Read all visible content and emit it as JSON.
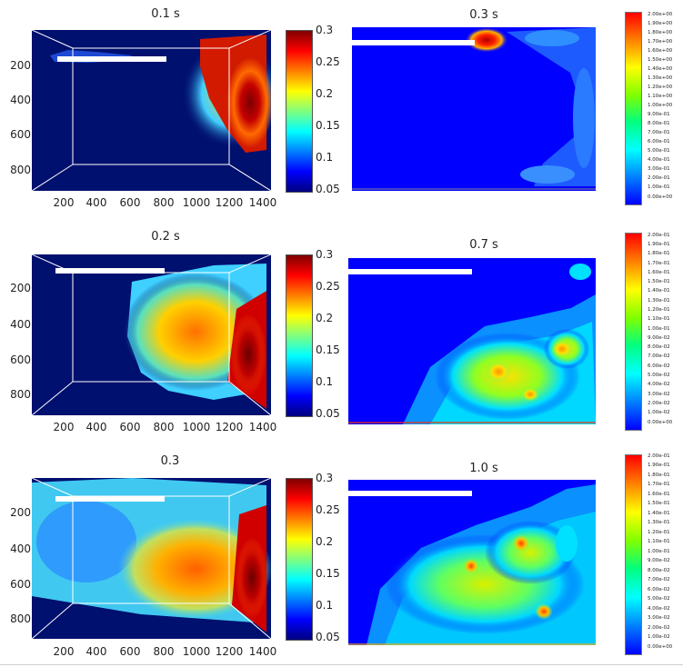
{
  "panels": [
    {
      "id": "exp1",
      "title": "0.1 s"
    },
    {
      "id": "exp2",
      "title": "0.2 s"
    },
    {
      "id": "exp3",
      "title": "0.3"
    },
    {
      "id": "sim1",
      "title": "0.3 s"
    },
    {
      "id": "sim2",
      "title": "0.7 s"
    },
    {
      "id": "sim3",
      "title": "1.0 s"
    }
  ],
  "chart_data": [
    {
      "type": "heatmap",
      "title": "0.1 s",
      "x_ticks": [
        "200",
        "400",
        "600",
        "800",
        "1000",
        "1200",
        "1400"
      ],
      "y_ticks": [
        "200",
        "400",
        "600",
        "800"
      ],
      "colorbar_ticks": [
        "0.3",
        "0.25",
        "0.2",
        "0.15",
        "0.1",
        "0.05"
      ],
      "colorbar_range": [
        0.05,
        0.3
      ],
      "colormap": "jet",
      "blobs": [
        {
          "x": 1300,
          "y": 350,
          "value": 0.29
        },
        {
          "x": 1150,
          "y": 300,
          "value": 0.2
        },
        {
          "x": 1050,
          "y": 150,
          "value": 0.15
        }
      ]
    },
    {
      "type": "heatmap",
      "title": "0.2 s",
      "x_ticks": [
        "200",
        "400",
        "600",
        "800",
        "1000",
        "1200",
        "1400"
      ],
      "y_ticks": [
        "200",
        "400",
        "600",
        "800"
      ],
      "colorbar_ticks": [
        "0.3",
        "0.25",
        "0.2",
        "0.15",
        "0.1",
        "0.05"
      ],
      "colorbar_range": [
        0.05,
        0.3
      ],
      "colormap": "jet",
      "blobs": [
        {
          "x": 1300,
          "y": 600,
          "value": 0.29
        },
        {
          "x": 1050,
          "y": 400,
          "value": 0.24
        },
        {
          "x": 850,
          "y": 300,
          "value": 0.2
        },
        {
          "x": 750,
          "y": 550,
          "value": 0.17
        }
      ]
    },
    {
      "type": "heatmap",
      "title": "0.3",
      "x_ticks": [
        "200",
        "400",
        "600",
        "800",
        "1000",
        "1200",
        "1400"
      ],
      "y_ticks": [
        "200",
        "400",
        "600",
        "800"
      ],
      "colorbar_ticks": [
        "0.3",
        "0.25",
        "0.2",
        "0.15",
        "0.1",
        "0.05"
      ],
      "colorbar_range": [
        0.05,
        0.3
      ],
      "colormap": "jet",
      "blobs": [
        {
          "x": 1300,
          "y": 600,
          "value": 0.29
        },
        {
          "x": 1050,
          "y": 550,
          "value": 0.23
        },
        {
          "x": 750,
          "y": 450,
          "value": 0.17
        },
        {
          "x": 450,
          "y": 550,
          "value": 0.13
        }
      ]
    },
    {
      "type": "heatmap",
      "title": "0.3 s",
      "colorbar_labels": [
        "2.00e+00",
        "1.90e+00",
        "1.80e+00",
        "1.70e+00",
        "1.60e+00",
        "1.50e+00",
        "1.40e+00",
        "1.30e+00",
        "1.20e+00",
        "1.10e+00",
        "1.00e+00",
        "9.00e-01",
        "8.00e-01",
        "7.00e-01",
        "6.00e-01",
        "5.00e-01",
        "4.00e-01",
        "3.00e-01",
        "2.00e-01",
        "1.00e-01",
        "0.00e+00"
      ],
      "colorbar_range": [
        0,
        2
      ],
      "colormap": "jet",
      "blobs": [
        {
          "x": 0.42,
          "y": 0.05,
          "value": 2.0
        },
        {
          "x": 0.95,
          "y": 0.5,
          "value": 0.35
        }
      ]
    },
    {
      "type": "heatmap",
      "title": "0.7 s",
      "colorbar_labels": [
        "2.00e-01",
        "1.90e-01",
        "1.80e-01",
        "1.70e-01",
        "1.60e-01",
        "1.50e-01",
        "1.40e-01",
        "1.30e-01",
        "1.20e-01",
        "1.10e-01",
        "1.00e-01",
        "9.00e-02",
        "8.00e-02",
        "7.00e-02",
        "6.00e-02",
        "5.00e-02",
        "4.00e-02",
        "3.00e-02",
        "2.00e-02",
        "1.00e-02",
        "0.00e+00"
      ],
      "colorbar_range": [
        0,
        0.2
      ],
      "colormap": "jet",
      "blobs": [
        {
          "x": 0.65,
          "y": 0.7,
          "value": 0.12
        },
        {
          "x": 0.85,
          "y": 0.55,
          "value": 0.14
        },
        {
          "x": 0.45,
          "y": 0.85,
          "value": 0.08
        }
      ]
    },
    {
      "type": "heatmap",
      "title": "1.0 s",
      "colorbar_labels": [
        "2.00e-01",
        "1.90e-01",
        "1.80e-01",
        "1.70e-01",
        "1.60e-01",
        "1.50e-01",
        "1.40e-01",
        "1.30e-01",
        "1.20e-01",
        "1.10e-01",
        "1.00e-01",
        "9.00e-02",
        "8.00e-02",
        "7.00e-02",
        "6.00e-02",
        "5.00e-02",
        "4.00e-02",
        "3.00e-02",
        "2.00e-02",
        "1.00e-02",
        "0.00e+00"
      ],
      "colorbar_range": [
        0,
        0.2
      ],
      "colormap": "jet",
      "blobs": [
        {
          "x": 0.6,
          "y": 0.6,
          "value": 0.13
        },
        {
          "x": 0.8,
          "y": 0.45,
          "value": 0.15
        },
        {
          "x": 0.3,
          "y": 0.75,
          "value": 0.09
        }
      ]
    }
  ]
}
